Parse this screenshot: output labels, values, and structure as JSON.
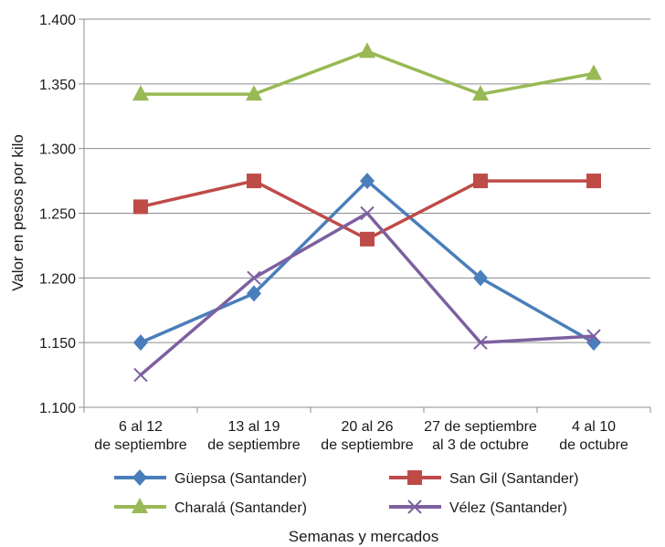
{
  "chart_data": {
    "type": "line",
    "xlabel": "Semanas y mercados",
    "ylabel": "Valor en pesos por kilo",
    "ylim": [
      1100,
      1400
    ],
    "yticks": [
      1100,
      1150,
      1200,
      1250,
      1300,
      1350,
      1400
    ],
    "ytick_labels": [
      "1.100",
      "1.150",
      "1.200",
      "1.250",
      "1.300",
      "1.350",
      "1.400"
    ],
    "categories": [
      [
        "6 al 12",
        "de septiembre"
      ],
      [
        "13 al 19",
        "de septiembre"
      ],
      [
        "20 al 26",
        "de septiembre"
      ],
      [
        "27 de septiembre",
        "al 3 de octubre"
      ],
      [
        "4 al 10",
        "de octubre"
      ]
    ],
    "grid": "horizontal",
    "legend_position": "bottom",
    "series": [
      {
        "name": "Güepsa (Santander)",
        "color": "#4a7ebb",
        "marker": "diamond",
        "values": [
          1150,
          1188,
          1275,
          1200,
          1150
        ]
      },
      {
        "name": "San Gil (Santander)",
        "color": "#be4b48",
        "marker": "square",
        "values": [
          1255,
          1275,
          1230,
          1275,
          1275
        ]
      },
      {
        "name": "Charalá (Santander)",
        "color": "#98b954",
        "marker": "triangle",
        "values": [
          1342,
          1342,
          1375,
          1342,
          1358
        ]
      },
      {
        "name": "Vélez (Santander)",
        "color": "#7d60a0",
        "marker": "x",
        "values": [
          1125,
          1200,
          1250,
          1150,
          1155
        ]
      }
    ]
  }
}
